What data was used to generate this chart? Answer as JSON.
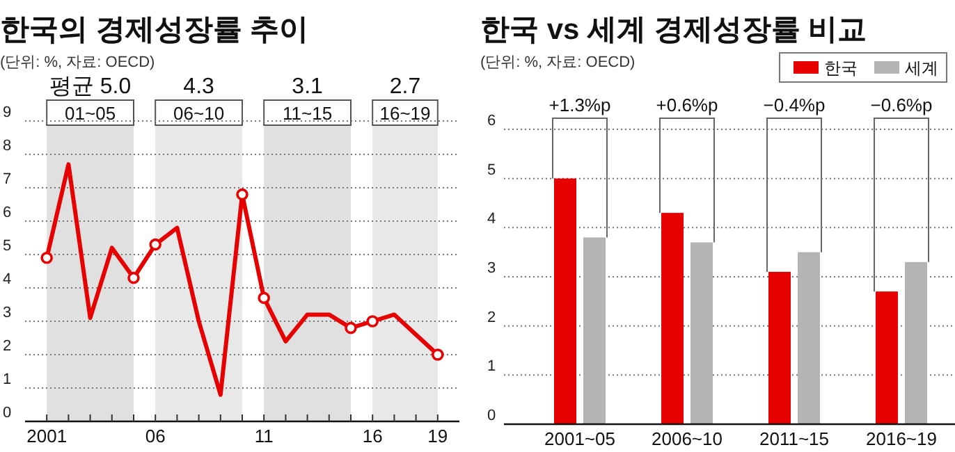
{
  "chart_data": [
    {
      "type": "line",
      "title": "한국의 경제성장률 추이",
      "subtitle": "(단위: %, 자료: OECD)",
      "x": [
        2001,
        2002,
        2003,
        2004,
        2005,
        2006,
        2007,
        2008,
        2009,
        2010,
        2011,
        2012,
        2013,
        2014,
        2015,
        2016,
        2017,
        2018,
        2019
      ],
      "series": [
        {
          "color": "#e60000",
          "values": [
            4.9,
            7.7,
            3.1,
            5.2,
            4.3,
            5.3,
            5.8,
            3.0,
            0.8,
            6.8,
            3.7,
            2.4,
            3.2,
            3.2,
            2.8,
            3.0,
            3.2,
            2.6,
            2.0
          ],
          "marker": "none"
        },
        {
          "type": "scatter",
          "color": "#e60000",
          "x": [
            2001,
            2005,
            2006,
            2010,
            2011,
            2015,
            2016,
            2019
          ],
          "values": [
            4.9,
            4.3,
            5.3,
            6.8,
            3.7,
            2.8,
            3.0,
            2.0
          ],
          "marker": "circle"
        }
      ],
      "xlim": [
        2000,
        2020
      ],
      "xticks": [
        {
          "value": 2001,
          "label": "2001"
        },
        {
          "value": 2002,
          "label": null
        },
        {
          "value": 2003,
          "label": null
        },
        {
          "value": 2004,
          "label": null
        },
        {
          "value": 2005,
          "label": null
        },
        {
          "value": 2006,
          "label": "06"
        },
        {
          "value": 2007,
          "label": null
        },
        {
          "value": 2008,
          "label": null
        },
        {
          "value": 2009,
          "label": null
        },
        {
          "value": 2010,
          "label": null
        },
        {
          "value": 2011,
          "label": "11"
        },
        {
          "value": 2012,
          "label": null
        },
        {
          "value": 2013,
          "label": null
        },
        {
          "value": 2014,
          "label": null
        },
        {
          "value": 2015,
          "label": null
        },
        {
          "value": 2016,
          "label": "16"
        },
        {
          "value": 2017,
          "label": null
        },
        {
          "value": 2018,
          "label": null
        },
        {
          "value": 2019,
          "label": "19"
        }
      ],
      "ylim": [
        0,
        9
      ],
      "yticks": [
        0,
        1,
        2,
        3,
        4,
        5,
        6,
        7,
        8,
        9
      ],
      "grid": "y",
      "line_style": "solid",
      "bands": [
        {
          "axis": "x",
          "from": 2001,
          "to": 2005,
          "label": "01~05",
          "color": "#e0e0e0"
        },
        {
          "axis": "x",
          "from": 2006,
          "to": 2010,
          "label": "06~10",
          "color": "#e8e8e8"
        },
        {
          "axis": "x",
          "from": 2011,
          "to": 2015,
          "label": "11~15",
          "color": "#e0e0e0"
        },
        {
          "axis": "x",
          "from": 2016,
          "to": 2019,
          "label": "16~19",
          "color": "#e8e8e8"
        }
      ],
      "annotations": [
        "평균 5.0",
        "4.3",
        "3.1",
        "2.7"
      ]
    },
    {
      "type": "bar",
      "title": "한국 vs 세계 경제성장률 비교",
      "subtitle": "(단위: %, 자료: OECD)",
      "categories": [
        "2001~05",
        "2006~10",
        "2011~15",
        "2016~19"
      ],
      "series": [
        {
          "name": "한국",
          "color": "#e60000",
          "values": [
            5.0,
            4.3,
            3.1,
            2.7
          ]
        },
        {
          "name": "세계",
          "color": "#b4b4b4",
          "values": [
            3.8,
            3.7,
            3.5,
            3.3
          ]
        }
      ],
      "ylim": [
        0,
        6
      ],
      "yticks": [
        0,
        1,
        2,
        3,
        4,
        5,
        6
      ],
      "grid": "y",
      "legend": "top right",
      "annotations": [
        "+1.3%p",
        "+0.6%p",
        "−0.4%p",
        "−0.6%p"
      ]
    }
  ]
}
